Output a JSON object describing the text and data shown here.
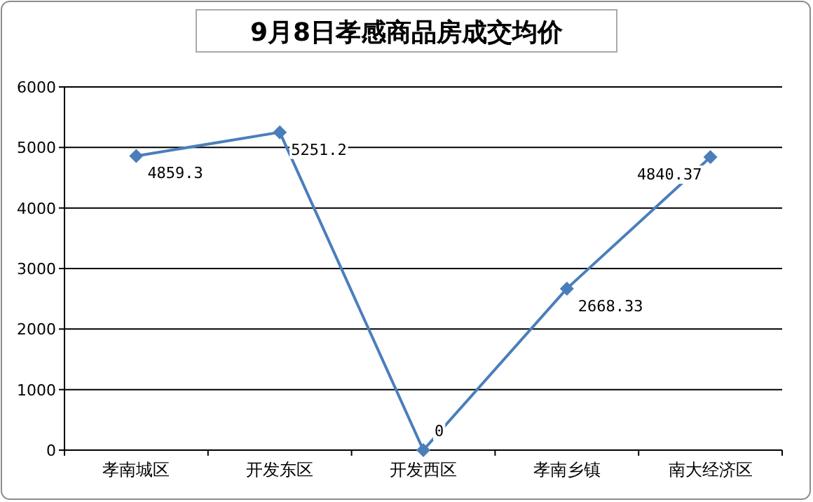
{
  "chart_data": {
    "type": "line",
    "title": "9月8日孝感商品房成交均价",
    "categories": [
      "孝南城区",
      "开发东区",
      "开发西区",
      "孝南乡镇",
      "南大经济区"
    ],
    "values": [
      4859.3,
      5251.2,
      0,
      2668.33,
      4840.37
    ],
    "color": "#4a7ebb",
    "ylim": [
      0,
      6000
    ],
    "yticks": [
      0,
      1000,
      2000,
      3000,
      4000,
      5000,
      6000
    ],
    "grid": "y",
    "marker": "diamond",
    "line_style": "solid",
    "data_labels": true
  }
}
